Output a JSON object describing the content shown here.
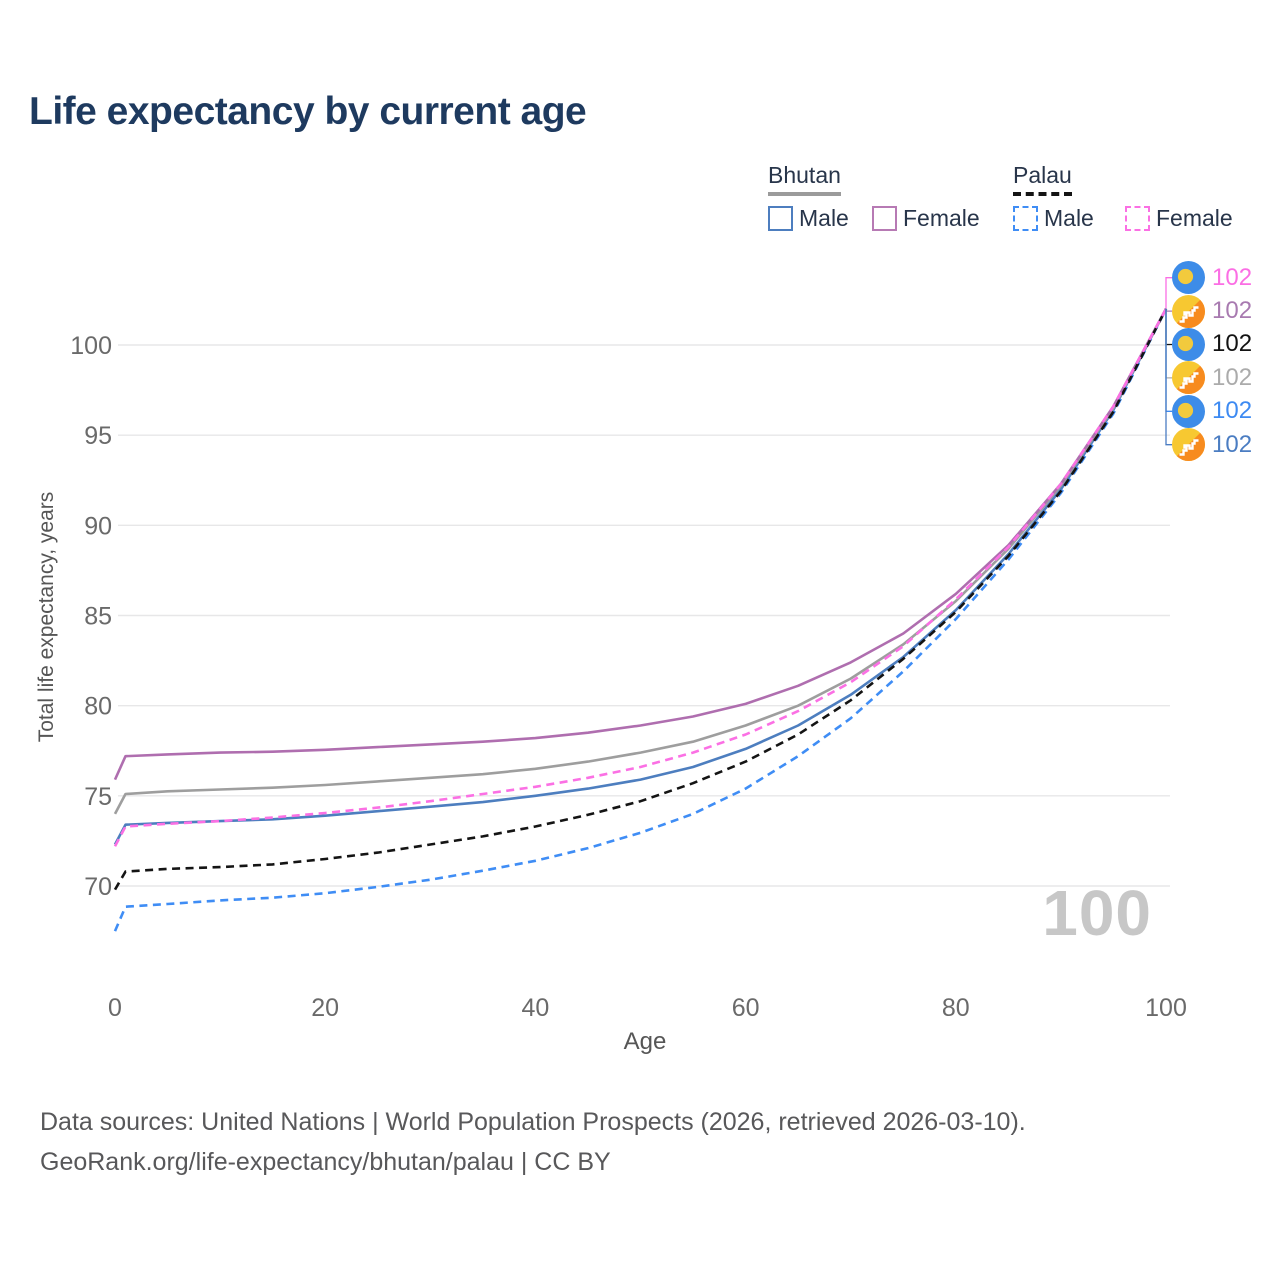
{
  "title": "Life expectancy by current age",
  "colors": {
    "title": "#1e3a5f",
    "bhutan_male": "#4d7ebf",
    "bhutan_female": "#af6eaf",
    "bhutan_female_box": "#b77ab4",
    "bhutan_all": "#9e9e9e",
    "palau_male": "#3f8df5",
    "palau_female": "#fb70e4",
    "palau_all": "#141414",
    "grid": "#e7e7e8",
    "watermark": "#c7c7c7"
  },
  "legend": {
    "groups": [
      {
        "name": "Bhutan",
        "style": "solid",
        "items": [
          {
            "label": "Male"
          },
          {
            "label": "Female"
          }
        ]
      },
      {
        "name": "Palau",
        "style": "dashed",
        "items": [
          {
            "label": "Male"
          },
          {
            "label": "Female"
          }
        ]
      }
    ]
  },
  "axis": {
    "x_title": "Age",
    "y_title": "Total life expectancy, years"
  },
  "watermark": "100",
  "end_labels": [
    {
      "flag": "palau",
      "series": "Palau Female",
      "value": "102",
      "color": "#fb6ee4"
    },
    {
      "flag": "bhutan",
      "series": "Bhutan Female",
      "value": "102",
      "color": "#a87ab0"
    },
    {
      "flag": "palau",
      "series": "Palau All",
      "value": "102",
      "color": "#131313"
    },
    {
      "flag": "bhutan",
      "series": "Bhutan All",
      "value": "102",
      "color": "#ababab"
    },
    {
      "flag": "palau",
      "series": "Palau Male",
      "value": "102",
      "color": "#3d8af2"
    },
    {
      "flag": "bhutan",
      "series": "Bhutan Male",
      "value": "102",
      "color": "#4b7dc2"
    }
  ],
  "chart_data": {
    "type": "line",
    "title": "Life expectancy by current age",
    "xlabel": "Age",
    "ylabel": "Total life expectancy, years",
    "xlim": [
      0,
      100
    ],
    "ylim": [
      66,
      103
    ],
    "xticks": [
      0,
      20,
      40,
      60,
      80,
      100
    ],
    "yticks": [
      70,
      75,
      80,
      85,
      90,
      95,
      100
    ],
    "grid": "horizontal",
    "legend_position": "top-right",
    "x": [
      0,
      1,
      5,
      10,
      15,
      20,
      25,
      30,
      35,
      40,
      45,
      50,
      55,
      60,
      65,
      70,
      75,
      80,
      85,
      90,
      95,
      100
    ],
    "series": [
      {
        "name": "Bhutan Male",
        "country": "Bhutan",
        "sex": "Male",
        "dash": false,
        "color": "#4d7ebf",
        "values": [
          72.3,
          73.4,
          73.5,
          73.6,
          73.7,
          73.9,
          74.15,
          74.4,
          74.65,
          75.0,
          75.4,
          75.9,
          76.6,
          77.6,
          78.9,
          80.6,
          82.7,
          85.3,
          88.4,
          92.0,
          96.4,
          102
        ]
      },
      {
        "name": "Bhutan All",
        "country": "Bhutan",
        "sex": "Both",
        "dash": false,
        "color": "#9e9e9e",
        "values": [
          74.0,
          75.1,
          75.25,
          75.35,
          75.45,
          75.6,
          75.8,
          76.0,
          76.2,
          76.5,
          76.9,
          77.4,
          78.0,
          78.9,
          80.0,
          81.5,
          83.4,
          85.8,
          88.7,
          92.2,
          96.5,
          102
        ]
      },
      {
        "name": "Bhutan Female",
        "country": "Bhutan",
        "sex": "Female",
        "dash": false,
        "color": "#af6eaf",
        "values": [
          75.9,
          77.2,
          77.3,
          77.4,
          77.45,
          77.55,
          77.7,
          77.85,
          78.0,
          78.2,
          78.5,
          78.9,
          79.4,
          80.1,
          81.1,
          82.4,
          84.0,
          86.2,
          88.9,
          92.3,
          96.6,
          102
        ]
      },
      {
        "name": "Palau Male",
        "country": "Palau",
        "sex": "Male",
        "dash": true,
        "color": "#3f8df5",
        "values": [
          67.5,
          68.85,
          69.0,
          69.2,
          69.35,
          69.6,
          69.95,
          70.35,
          70.85,
          71.4,
          72.1,
          72.95,
          74.0,
          75.4,
          77.2,
          79.3,
          81.9,
          84.8,
          88.1,
          91.8,
          96.2,
          102
        ]
      },
      {
        "name": "Palau All",
        "country": "Palau",
        "sex": "Both",
        "dash": true,
        "color": "#141414",
        "values": [
          69.8,
          70.8,
          70.95,
          71.05,
          71.2,
          71.5,
          71.85,
          72.3,
          72.75,
          73.3,
          73.95,
          74.7,
          75.7,
          76.9,
          78.4,
          80.3,
          82.6,
          85.2,
          88.3,
          91.9,
          96.3,
          102
        ]
      },
      {
        "name": "Palau Female",
        "country": "Palau",
        "sex": "Female",
        "dash": true,
        "color": "#fb70e4",
        "values": [
          72.2,
          73.3,
          73.45,
          73.6,
          73.8,
          74.05,
          74.35,
          74.7,
          75.1,
          75.5,
          76.0,
          76.6,
          77.4,
          78.4,
          79.7,
          81.3,
          83.3,
          85.9,
          88.8,
          92.3,
          96.6,
          102
        ]
      }
    ]
  },
  "footer": {
    "line1": "Data sources: United Nations | World Population Prospects (2026, retrieved 2026-03-10).",
    "line2": "GeoRank.org/life-expectancy/bhutan/palau | CC BY"
  }
}
